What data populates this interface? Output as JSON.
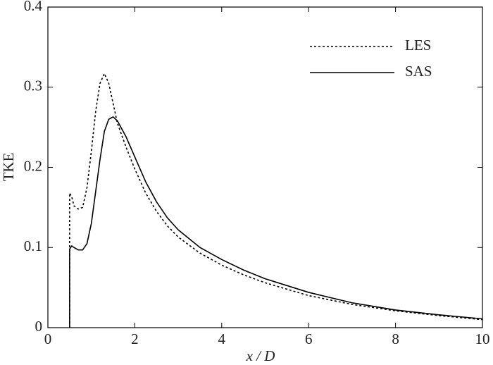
{
  "chart_data": {
    "type": "line",
    "xlabel": "x / D",
    "ylabel": "TKE",
    "x": [
      0.5,
      0.5,
      0.55,
      0.6,
      0.7,
      0.8,
      0.9,
      1.0,
      1.1,
      1.2,
      1.3,
      1.4,
      1.5,
      1.6,
      1.8,
      2.0,
      2.25,
      2.5,
      2.75,
      3,
      3.5,
      4,
      4.5,
      5,
      6,
      7,
      8,
      9,
      10
    ],
    "series": [
      {
        "name": "LES",
        "color": "#000000",
        "dash": "dotted",
        "values": [
          0,
          0.168,
          0.163,
          0.152,
          0.148,
          0.15,
          0.175,
          0.22,
          0.27,
          0.305,
          0.317,
          0.305,
          0.28,
          0.255,
          0.225,
          0.198,
          0.168,
          0.145,
          0.127,
          0.113,
          0.093,
          0.078,
          0.066,
          0.056,
          0.04,
          0.029,
          0.021,
          0.015,
          0.01
        ]
      },
      {
        "name": "SAS",
        "color": "#000000",
        "dash": "solid",
        "values": [
          0,
          0.098,
          0.102,
          0.1,
          0.097,
          0.097,
          0.105,
          0.13,
          0.17,
          0.21,
          0.245,
          0.26,
          0.263,
          0.258,
          0.238,
          0.213,
          0.182,
          0.157,
          0.137,
          0.122,
          0.1,
          0.085,
          0.072,
          0.061,
          0.044,
          0.031,
          0.022,
          0.016,
          0.011
        ]
      }
    ],
    "xlim": [
      0,
      10
    ],
    "xticks": [
      0,
      2,
      4,
      6,
      8,
      10
    ],
    "ylim": [
      0,
      0.4
    ],
    "yticks": [
      0,
      0.1,
      0.2,
      0.3,
      0.4
    ],
    "grid": false,
    "legend": "upper right"
  }
}
